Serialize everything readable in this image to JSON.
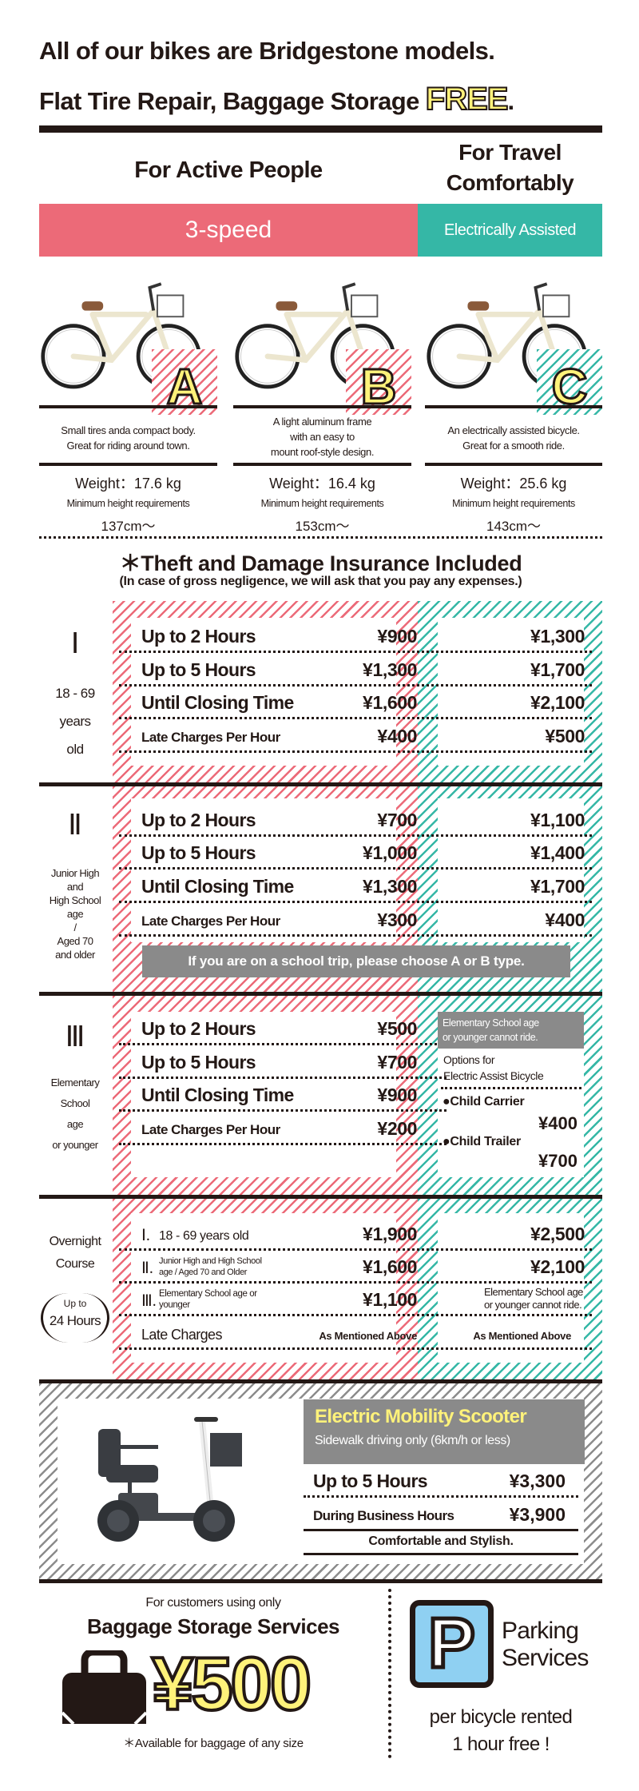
{
  "header": {
    "line1": "All of our bikes are Bridgestone models.",
    "line2": "Flat Tire Repair, Baggage Storage",
    "free": "FREE",
    "period": "."
  },
  "categories": {
    "active": "For Active People",
    "travel_1": "For Travel",
    "travel_2": "Comfortably"
  },
  "bands": {
    "three_speed": "3-speed",
    "electric": "Electrically Assisted"
  },
  "colors": {
    "pink": "#EC6A78",
    "teal": "#35B7A6",
    "yellow": "#FFF27A",
    "gray": "#8A8A8A",
    "ink": "#231815",
    "parking_blue": "#8FD0F2"
  },
  "bikes": [
    {
      "letter": "A",
      "desc": [
        "Small tires anda compact body.",
        "Great for riding around town."
      ],
      "weight": "Weight：17.6 kg",
      "min_height_label": "Minimum height requirements",
      "min_height": "137cm～"
    },
    {
      "letter": "B",
      "desc": [
        "A light aluminum frame",
        "with an easy to",
        "mount roof-style design."
      ],
      "weight": "Weight：16.4 kg",
      "min_height_label": "Minimum height requirements",
      "min_height": "153cm～"
    },
    {
      "letter": "C",
      "desc": [
        "An electrically assisted bicycle.",
        "Great for a smooth ride."
      ],
      "weight": "Weight：25.6 kg",
      "min_height_label": "Minimum height requirements",
      "min_height": "143cm～"
    }
  ],
  "insurance": {
    "title": "＊Theft and Damage Insurance Included",
    "note": "(In case of gross negligence, we will ask that you pay any expenses.)"
  },
  "sections": [
    {
      "numeral": "Ⅰ",
      "label": [
        "18 - 69",
        "years",
        "old"
      ],
      "rows": [
        {
          "label": "Up to 2 Hours",
          "price": "¥900",
          "ebike": "¥1,300"
        },
        {
          "label": "Up to 5 Hours",
          "price": "¥1,300",
          "ebike": "¥1,700"
        },
        {
          "label": "Until Closing Time",
          "price": "¥1,600",
          "ebike": "¥2,100"
        },
        {
          "label": "Late Charges Per Hour",
          "price": "¥400",
          "ebike": "¥500"
        }
      ]
    },
    {
      "numeral": "Ⅱ",
      "label": [
        "Junior High",
        "and",
        "High School",
        "age",
        "/",
        "Aged 70",
        "and older"
      ],
      "rows": [
        {
          "label": "Up to 2 Hours",
          "price": "¥700",
          "ebike": "¥1,100"
        },
        {
          "label": "Up to 5 Hours",
          "price": "¥1,000",
          "ebike": "¥1,400"
        },
        {
          "label": "Until Closing Time",
          "price": "¥1,300",
          "ebike": "¥1,700"
        },
        {
          "label": "Late Charges Per Hour",
          "price": "¥300",
          "ebike": "¥400"
        }
      ],
      "notice": "If you are on a school trip, please choose A or B type."
    },
    {
      "numeral": "Ⅲ",
      "label": [
        "Elementary",
        "School",
        "age",
        "or younger"
      ],
      "rows": [
        {
          "label": "Up to 2 Hours",
          "price": "¥500"
        },
        {
          "label": "Up to 5 Hours",
          "price": "¥700"
        },
        {
          "label": "Until Closing Time",
          "price": "¥900"
        },
        {
          "label": "Late Charges Per Hour",
          "price": "¥200"
        }
      ],
      "ebike_note": [
        "Elementary School age",
        "or younger cannot ride."
      ],
      "options_title": [
        "Options for",
        "Electric Assist Bicycle"
      ],
      "options": [
        {
          "name": "●Child Carrier",
          "price": "¥400"
        },
        {
          "name": "●Child Trailer",
          "price": "¥700"
        }
      ]
    }
  ],
  "overnight": {
    "label": [
      "Overnight",
      "Course"
    ],
    "duration": [
      "Up to",
      "24 Hours"
    ],
    "rows": [
      {
        "numeral": "Ⅰ.",
        "label": [
          "18 - 69 years old"
        ],
        "price": "¥1,900",
        "ebike": "¥2,500"
      },
      {
        "numeral": "Ⅱ.",
        "label": [
          "Junior High and High School",
          "age / Aged 70 and Older"
        ],
        "price": "¥1,600",
        "ebike": "¥2,100"
      },
      {
        "numeral": "Ⅲ.",
        "label": [
          "Elementary School age or",
          "younger"
        ],
        "price": "¥1,100",
        "ebike_note": [
          "Elementary School age",
          "or younger cannot ride."
        ]
      }
    ],
    "late": {
      "label": "Late Charges",
      "price": "As Mentioned Above",
      "ebike": "As Mentioned Above"
    }
  },
  "scooter": {
    "title": "Electric Mobility Scooter",
    "subtitle": "Sidewalk driving only (6km/h or less)",
    "rows": [
      {
        "label": "Up to 5 Hours",
        "price": "¥3,300"
      },
      {
        "label": "During Business Hours",
        "price": "¥3,900"
      }
    ],
    "tagline": "Comfortable and Stylish."
  },
  "baggage": {
    "intro": "For customers using only",
    "title": "Baggage Storage Services",
    "price": "¥500",
    "note": "＊Available for baggage of any size"
  },
  "parking": {
    "sign": "P",
    "title_1": "Parking",
    "title_2": "Services",
    "line1": "per bicycle rented",
    "line2": "1 hour free !"
  }
}
